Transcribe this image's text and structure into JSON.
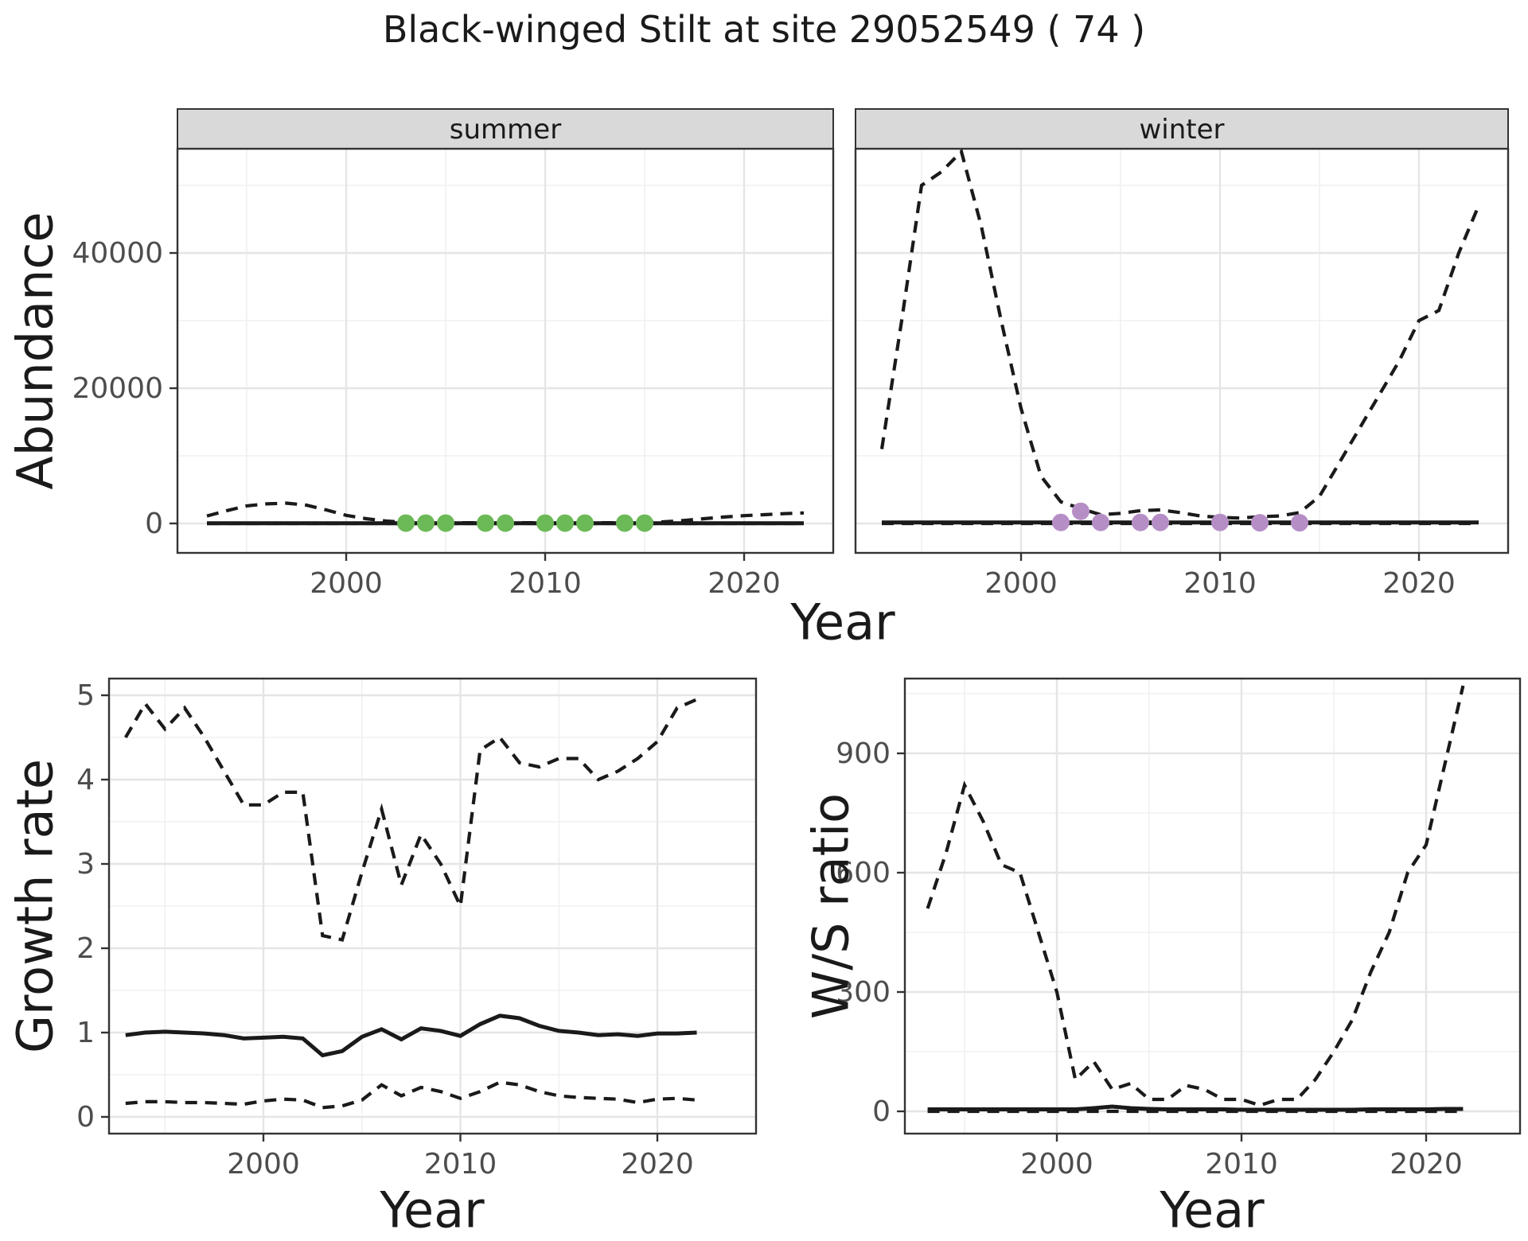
{
  "title": "Black-winged Stilt at site 29052549 ( 74 )",
  "axis": {
    "x_label": "Year",
    "abundance_label": "Abundance",
    "growth_label": "Growth rate",
    "ratio_label": "W/S ratio"
  },
  "colors": {
    "line": "#1A1A1A",
    "summer_points": "#6CB957",
    "winter_points": "#B68EC6",
    "strip_bg": "#D9D9D9",
    "panel_border": "#333333",
    "grid_major": "#E5E5E5",
    "grid_minor": "#F0F0F0",
    "tick_label": "#4D4D4D"
  },
  "chart_data": [
    {
      "id": "abundance_summer",
      "type": "line",
      "facet_label": "summer",
      "xlabel": "Year",
      "ylabel": "Abundance",
      "x_ticks": [
        2000,
        2010,
        2020
      ],
      "x_minor": [
        1995,
        2005,
        2015
      ],
      "y_ticks": [
        0,
        20000,
        40000
      ],
      "y_minor": [
        10000,
        30000,
        50000
      ],
      "xlim": [
        1991.5,
        2024.5
      ],
      "ylim": [
        -4350,
        55400
      ],
      "grid": true,
      "legend": "none",
      "years": [
        1993,
        1994,
        1995,
        1996,
        1997,
        1998,
        1999,
        2000,
        2001,
        2002,
        2003,
        2004,
        2005,
        2006,
        2007,
        2008,
        2009,
        2010,
        2011,
        2012,
        2013,
        2014,
        2015,
        2016,
        2017,
        2018,
        2019,
        2020,
        2021,
        2022,
        2023
      ],
      "series": [
        {
          "name": "upper_95ci",
          "linetype": "dashed",
          "values": [
            1100,
            1900,
            2600,
            2900,
            3000,
            2700,
            2000,
            1200,
            700,
            350,
            150,
            100,
            100,
            100,
            100,
            100,
            100,
            100,
            100,
            100,
            100,
            100,
            150,
            250,
            450,
            700,
            950,
            1150,
            1300,
            1450,
            1550
          ]
        },
        {
          "name": "lower_95ci",
          "linetype": "dashed",
          "values": [
            0,
            0,
            0,
            0,
            0,
            0,
            0,
            0,
            0,
            0,
            0,
            0,
            0,
            0,
            0,
            0,
            0,
            0,
            0,
            0,
            0,
            0,
            0,
            0,
            0,
            0,
            0,
            0,
            0,
            0,
            0
          ]
        },
        {
          "name": "fitted",
          "linetype": "solid",
          "values": [
            30,
            30,
            30,
            30,
            30,
            30,
            30,
            30,
            30,
            30,
            30,
            30,
            30,
            30,
            30,
            30,
            30,
            30,
            30,
            30,
            30,
            30,
            30,
            30,
            30,
            30,
            30,
            30,
            30,
            30,
            30
          ]
        }
      ],
      "points": {
        "name": "observed_counts",
        "color": "#6CB957",
        "years": [
          2003,
          2004,
          2005,
          2007,
          2008,
          2010,
          2011,
          2012,
          2014,
          2015
        ],
        "values": [
          50,
          50,
          50,
          50,
          50,
          50,
          50,
          50,
          50,
          50
        ]
      }
    },
    {
      "id": "abundance_winter",
      "type": "line",
      "facet_label": "winter",
      "xlabel": "Year",
      "ylabel": "Abundance",
      "x_ticks": [
        2000,
        2010,
        2020
      ],
      "x_minor": [
        1995,
        2005,
        2015
      ],
      "y_ticks": [
        0,
        20000,
        40000
      ],
      "y_minor": [
        10000,
        30000,
        50000
      ],
      "xlim": [
        1991.5,
        2024.5
      ],
      "ylim": [
        -4350,
        55400
      ],
      "grid": true,
      "legend": "none",
      "years": [
        1993,
        1994,
        1995,
        1996,
        1997,
        1998,
        1999,
        2000,
        2001,
        2002,
        2003,
        2004,
        2005,
        2006,
        2007,
        2008,
        2009,
        2010,
        2011,
        2012,
        2013,
        2014,
        2015,
        2016,
        2017,
        2018,
        2019,
        2020,
        2021,
        2022,
        2023
      ],
      "series": [
        {
          "name": "upper_95ci",
          "linetype": "dashed",
          "values": [
            11000,
            30000,
            50000,
            52000,
            55000,
            44000,
            30000,
            17000,
            7000,
            3200,
            2200,
            1300,
            1500,
            1900,
            2000,
            1600,
            1100,
            900,
            800,
            1000,
            1100,
            1600,
            4000,
            9000,
            14000,
            19000,
            24000,
            30000,
            31500,
            40000,
            47000
          ]
        },
        {
          "name": "lower_95ci",
          "linetype": "dashed",
          "values": [
            0,
            0,
            0,
            0,
            0,
            0,
            0,
            0,
            0,
            0,
            0,
            0,
            0,
            0,
            0,
            0,
            0,
            0,
            0,
            0,
            0,
            0,
            0,
            0,
            0,
            0,
            0,
            0,
            0,
            0,
            0
          ]
        },
        {
          "name": "fitted",
          "linetype": "solid",
          "values": [
            150,
            150,
            150,
            150,
            150,
            150,
            150,
            150,
            150,
            150,
            150,
            150,
            150,
            150,
            150,
            150,
            150,
            150,
            150,
            150,
            150,
            150,
            150,
            150,
            150,
            150,
            150,
            150,
            150,
            150,
            150
          ]
        }
      ],
      "points": {
        "name": "observed_counts",
        "color": "#B68EC6",
        "years": [
          2002,
          2003,
          2004,
          2006,
          2007,
          2010,
          2012,
          2014
        ],
        "values": [
          150,
          1800,
          150,
          150,
          150,
          150,
          100,
          100
        ]
      }
    },
    {
      "id": "growth_rate",
      "type": "line",
      "facet_label": "",
      "xlabel": "Year",
      "ylabel": "Growth rate",
      "x_ticks": [
        2000,
        2010,
        2020
      ],
      "x_minor": [
        1995,
        2005,
        2015
      ],
      "y_ticks": [
        0,
        1,
        2,
        3,
        4,
        5
      ],
      "y_minor": [
        0.5,
        1.5,
        2.5,
        3.5,
        4.5
      ],
      "xlim": [
        1992.2,
        2025.0
      ],
      "ylim": [
        -0.2,
        5.2
      ],
      "grid": true,
      "legend": "none",
      "years": [
        1993,
        1994,
        1995,
        1996,
        1997,
        1998,
        1999,
        2000,
        2001,
        2002,
        2003,
        2004,
        2005,
        2006,
        2007,
        2008,
        2009,
        2010,
        2011,
        2012,
        2013,
        2014,
        2015,
        2016,
        2017,
        2018,
        2019,
        2020,
        2021,
        2022
      ],
      "series": [
        {
          "name": "upper_95ci",
          "linetype": "dashed",
          "values": [
            4.5,
            4.9,
            4.6,
            4.85,
            4.5,
            4.1,
            3.7,
            3.7,
            3.85,
            3.85,
            2.15,
            2.1,
            2.9,
            3.65,
            2.75,
            3.35,
            3.0,
            2.5,
            4.35,
            4.5,
            4.2,
            4.15,
            4.25,
            4.25,
            4.0,
            4.1,
            4.25,
            4.45,
            4.85,
            4.95
          ]
        },
        {
          "name": "lower_95ci",
          "linetype": "dashed",
          "values": [
            0.16,
            0.18,
            0.18,
            0.17,
            0.17,
            0.16,
            0.15,
            0.19,
            0.21,
            0.2,
            0.11,
            0.13,
            0.2,
            0.38,
            0.25,
            0.35,
            0.3,
            0.22,
            0.3,
            0.41,
            0.38,
            0.3,
            0.25,
            0.23,
            0.22,
            0.21,
            0.17,
            0.21,
            0.22,
            0.2
          ]
        },
        {
          "name": "fitted",
          "linetype": "solid",
          "values": [
            0.97,
            1.0,
            1.01,
            1.0,
            0.99,
            0.97,
            0.93,
            0.94,
            0.95,
            0.93,
            0.73,
            0.78,
            0.95,
            1.04,
            0.92,
            1.05,
            1.02,
            0.96,
            1.1,
            1.2,
            1.17,
            1.08,
            1.02,
            1.0,
            0.97,
            0.98,
            0.96,
            0.99,
            0.99,
            1.0
          ]
        }
      ],
      "points": null
    },
    {
      "id": "ws_ratio",
      "type": "line",
      "facet_label": "",
      "xlabel": "Year",
      "ylabel": "W/S ratio",
      "x_ticks": [
        2000,
        2010,
        2020
      ],
      "x_minor": [
        1995,
        2005,
        2015
      ],
      "y_ticks": [
        0,
        300,
        600,
        900
      ],
      "y_minor": [
        150,
        450,
        750,
        1050
      ],
      "xlim": [
        1991.8,
        2025.1
      ],
      "ylim": [
        -56,
        1088
      ],
      "grid": true,
      "legend": "none",
      "years": [
        1993,
        1994,
        1995,
        1996,
        1997,
        1998,
        1999,
        2000,
        2001,
        2002,
        2003,
        2004,
        2005,
        2006,
        2007,
        2008,
        2009,
        2010,
        2011,
        2012,
        2013,
        2014,
        2015,
        2016,
        2017,
        2018,
        2019,
        2020,
        2021,
        2022
      ],
      "series": [
        {
          "name": "upper_95ci",
          "linetype": "dashed",
          "values": [
            510,
            650,
            820,
            730,
            620,
            600,
            450,
            300,
            80,
            125,
            55,
            70,
            30,
            30,
            65,
            55,
            30,
            30,
            15,
            30,
            30,
            80,
            150,
            230,
            350,
            450,
            600,
            670,
            870,
            1070
          ]
        },
        {
          "name": "lower_95ci",
          "linetype": "dashed",
          "values": [
            0,
            0,
            0,
            0,
            0,
            0,
            0,
            0,
            0,
            0,
            0,
            0,
            0,
            0,
            0,
            0,
            0,
            0,
            0,
            0,
            0,
            0,
            0,
            0,
            0,
            0,
            0,
            0,
            0,
            0
          ]
        },
        {
          "name": "fitted",
          "linetype": "solid",
          "values": [
            5,
            5,
            5,
            5,
            5,
            5,
            5,
            5,
            5,
            8,
            12,
            8,
            6,
            5,
            5,
            5,
            5,
            4,
            4,
            4,
            4,
            4,
            4,
            4,
            5,
            5,
            5,
            5,
            6,
            6
          ]
        }
      ],
      "points": null
    }
  ]
}
